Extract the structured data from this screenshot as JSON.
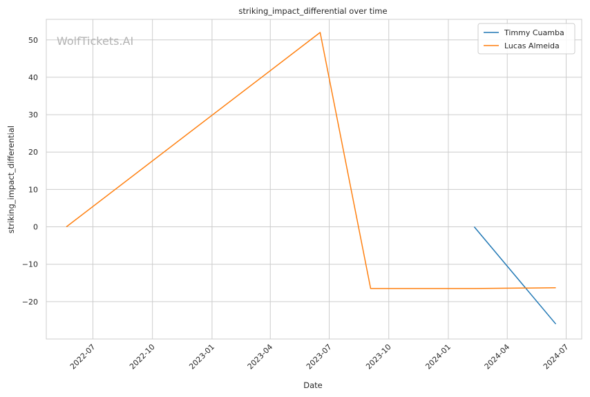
{
  "watermark": "WolfTickets.AI",
  "chart_data": {
    "type": "line",
    "title": "striking_impact_differential over time",
    "xlabel": "Date",
    "ylabel": "striking_impact_differential",
    "x_ticks": [
      "2022-07",
      "2022-10",
      "2023-01",
      "2023-04",
      "2023-07",
      "2023-10",
      "2024-01",
      "2024-04",
      "2024-07"
    ],
    "y_ticks": [
      -20,
      -10,
      0,
      10,
      20,
      30,
      40,
      50
    ],
    "y_tick_labels": [
      "−20",
      "−10",
      "0",
      "10",
      "20",
      "30",
      "40",
      "50"
    ],
    "xlim": [
      "2022-04-20",
      "2024-07-25"
    ],
    "ylim": [
      -30,
      55.5
    ],
    "grid": true,
    "legend_position": "top-right",
    "series": [
      {
        "name": "Timmy Cuamba",
        "color": "#1f77b4",
        "x": [
          "2024-02-10",
          "2024-06-15"
        ],
        "y": [
          0,
          -26
        ]
      },
      {
        "name": "Lucas Almeida",
        "color": "#ff7f0e",
        "x": [
          "2022-05-21",
          "2023-06-17",
          "2023-09-03",
          "2024-02-10",
          "2024-06-15"
        ],
        "y": [
          0,
          52,
          -16.5,
          -16.5,
          -16.3
        ]
      }
    ]
  }
}
